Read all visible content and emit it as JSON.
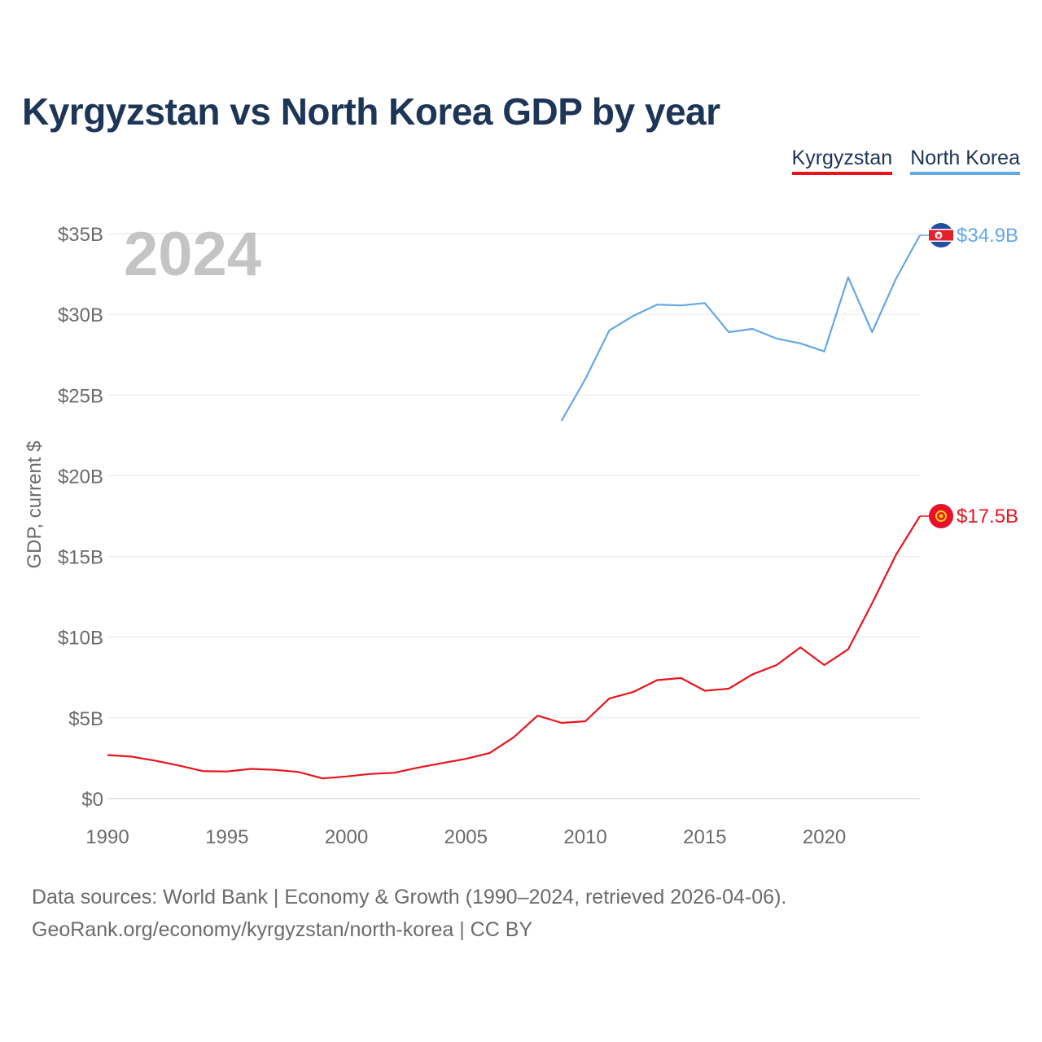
{
  "title": "Kyrgyzstan vs North Korea GDP by year",
  "legend": {
    "ky": "Kyrgyzstan",
    "nk": "North Korea"
  },
  "colors": {
    "ky": "#e8141c",
    "nk": "#64a8e6",
    "title": "#1d3557"
  },
  "footer": {
    "line1": "Data sources: World Bank | Economy & Growth (1990–2024, retrieved 2026-04-06).",
    "line2": "GeoRank.org/economy/kyrgyzstan/north-korea | CC BY"
  },
  "chart_data": {
    "type": "line",
    "year_watermark": "2024",
    "ylabel": "GDP, current $",
    "ylim": [
      0,
      35
    ],
    "yticks": [
      0,
      5,
      10,
      15,
      20,
      25,
      30,
      35
    ],
    "ytick_labels": [
      "$0",
      "$5B",
      "$10B",
      "$15B",
      "$20B",
      "$25B",
      "$30B",
      "$35B"
    ],
    "xlim": [
      1990,
      2024
    ],
    "xticks": [
      1990,
      1995,
      2000,
      2005,
      2010,
      2015,
      2020
    ],
    "xtick_labels": [
      "1990",
      "1995",
      "2000",
      "2005",
      "2010",
      "2015",
      "2020"
    ],
    "series": [
      {
        "name": "Kyrgyzstan",
        "key": "ky",
        "end_label": "$17.5B",
        "flag": "kyrgyzstan-flag",
        "x": [
          1990,
          1991,
          1992,
          1993,
          1994,
          1995,
          1996,
          1997,
          1998,
          1999,
          2000,
          2001,
          2002,
          2003,
          2004,
          2005,
          2006,
          2007,
          2008,
          2009,
          2010,
          2011,
          2012,
          2013,
          2014,
          2015,
          2016,
          2017,
          2018,
          2019,
          2020,
          2021,
          2022,
          2023,
          2024
        ],
        "values": [
          2.7,
          2.6,
          2.35,
          2.05,
          1.7,
          1.68,
          1.84,
          1.78,
          1.65,
          1.25,
          1.37,
          1.53,
          1.6,
          1.92,
          2.2,
          2.46,
          2.83,
          3.8,
          5.14,
          4.69,
          4.79,
          6.2,
          6.6,
          7.34,
          7.47,
          6.68,
          6.81,
          7.7,
          8.27,
          9.37,
          8.27,
          9.25,
          12.1,
          15.1,
          17.5
        ]
      },
      {
        "name": "North Korea",
        "key": "nk",
        "end_label": "$34.9B",
        "flag": "north-korea-flag",
        "x": [
          2009,
          2010,
          2011,
          2012,
          2013,
          2014,
          2015,
          2016,
          2017,
          2018,
          2019,
          2020,
          2021,
          2022,
          2023,
          2024
        ],
        "values": [
          23.4,
          26.0,
          29.0,
          29.9,
          30.6,
          30.55,
          30.7,
          28.9,
          29.1,
          28.5,
          28.2,
          27.7,
          32.3,
          28.9,
          32.2,
          34.9
        ]
      }
    ]
  }
}
